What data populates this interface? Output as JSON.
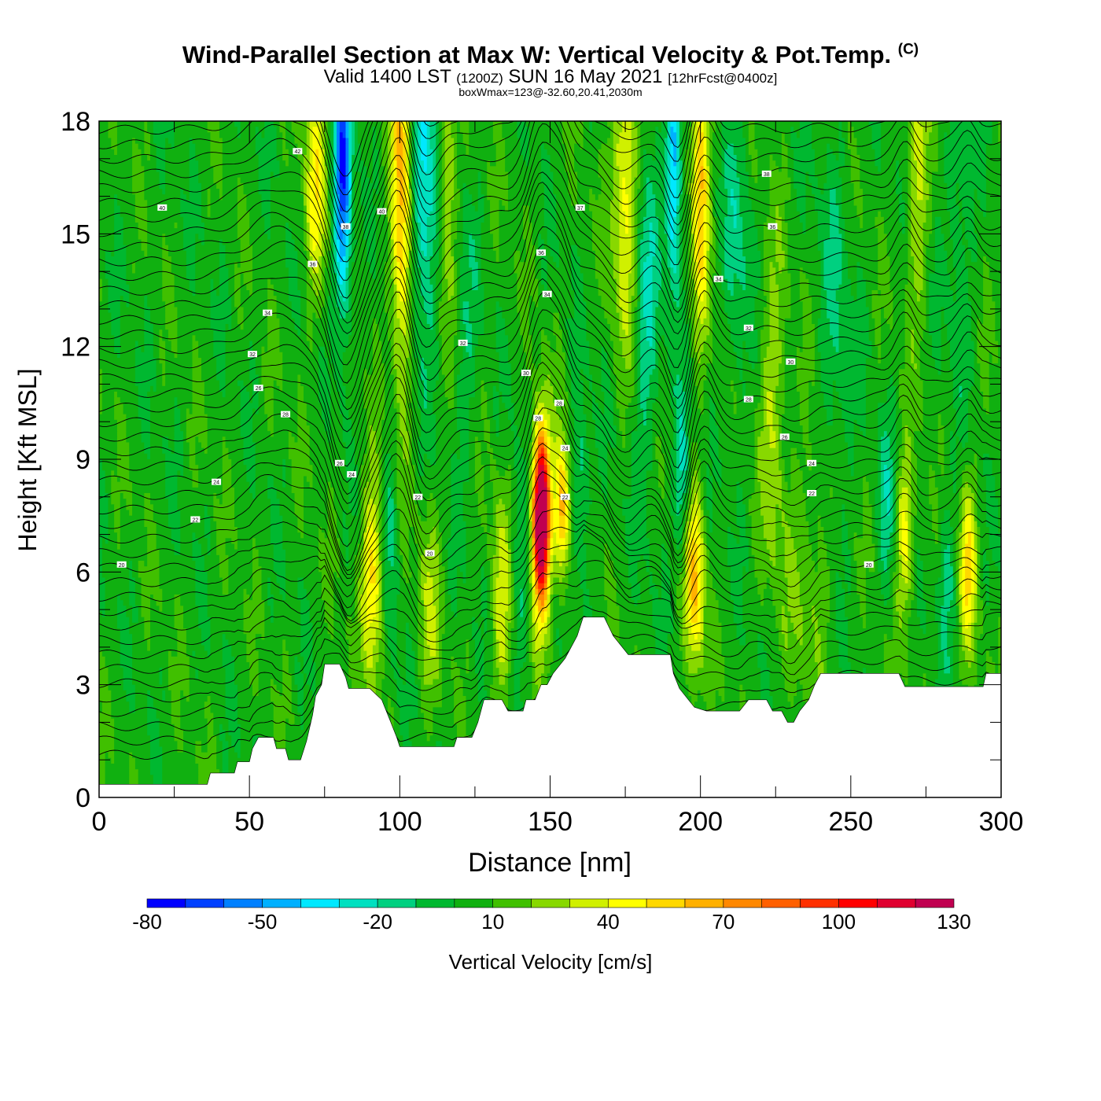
{
  "header": {
    "title_main": "Wind-Parallel Section at Max W: Vertical Velocity & Pot.Temp.",
    "title_mark": "(C)",
    "valid_prefix": "Valid 1400 LST",
    "valid_utc": "(1200Z)",
    "valid_date": "SUN 16 May 2021",
    "valid_fcst": "[12hrFcst@0400z]",
    "box_info": "boxWmax=123@-32.60,20.41,2030m"
  },
  "chart_data": {
    "type": "heatmap",
    "xlabel": "Distance [nm]",
    "ylabel": "Height [Kft MSL]",
    "xlim": [
      0,
      300
    ],
    "ylim": [
      0,
      18
    ],
    "xticks": [
      0,
      50,
      100,
      150,
      200,
      250,
      300
    ],
    "yticks": [
      0,
      3,
      6,
      9,
      12,
      15,
      18
    ],
    "colorbar": {
      "label": "Vertical Velocity [cm/s]",
      "ticks": [
        -80,
        -50,
        -20,
        10,
        40,
        70,
        100,
        130
      ],
      "levels": [
        -80,
        -70,
        -60,
        -50,
        -40,
        -30,
        -20,
        -10,
        0,
        10,
        20,
        30,
        40,
        50,
        60,
        70,
        80,
        90,
        100,
        110,
        120,
        130
      ],
      "colors": [
        "#0000ff",
        "#0040ff",
        "#0080ff",
        "#00b0ff",
        "#00e8ff",
        "#00e0c0",
        "#00d080",
        "#00b830",
        "#10b010",
        "#40c000",
        "#88d800",
        "#d0f000",
        "#ffff00",
        "#ffd800",
        "#ffb000",
        "#ff8800",
        "#ff6000",
        "#ff3000",
        "#ff0000",
        "#e00030",
        "#c00050"
      ]
    },
    "background_value": 5,
    "terrain_kft": [
      [
        0,
        0.35
      ],
      [
        36,
        0.35
      ],
      [
        37,
        0.65
      ],
      [
        45,
        0.65
      ],
      [
        46,
        0.95
      ],
      [
        50,
        0.95
      ],
      [
        51,
        1.3
      ],
      [
        53,
        1.6
      ],
      [
        58,
        1.6
      ],
      [
        59,
        1.3
      ],
      [
        62,
        1.3
      ],
      [
        63,
        1.0
      ],
      [
        67,
        1.0
      ],
      [
        69,
        1.5
      ],
      [
        71,
        2.2
      ],
      [
        72,
        2.7
      ],
      [
        74,
        3.0
      ],
      [
        75,
        3.55
      ],
      [
        80,
        3.55
      ],
      [
        82,
        3.2
      ],
      [
        83,
        2.9
      ],
      [
        90,
        2.9
      ],
      [
        94,
        2.6
      ],
      [
        97,
        2.0
      ],
      [
        99,
        1.6
      ],
      [
        100,
        1.35
      ],
      [
        118,
        1.35
      ],
      [
        119,
        1.6
      ],
      [
        124,
        1.6
      ],
      [
        126,
        2.0
      ],
      [
        128,
        2.6
      ],
      [
        134,
        2.6
      ],
      [
        136,
        2.3
      ],
      [
        141,
        2.3
      ],
      [
        142,
        2.6
      ],
      [
        145,
        2.6
      ],
      [
        147,
        3.0
      ],
      [
        149,
        3.0
      ],
      [
        151,
        3.3
      ],
      [
        155,
        3.7
      ],
      [
        159,
        4.3
      ],
      [
        161,
        4.8
      ],
      [
        168,
        4.8
      ],
      [
        171,
        4.3
      ],
      [
        176,
        3.8
      ],
      [
        182,
        3.8
      ],
      [
        190,
        3.8
      ],
      [
        191,
        3.3
      ],
      [
        193,
        2.9
      ],
      [
        196,
        2.6
      ],
      [
        198,
        2.4
      ],
      [
        202,
        2.3
      ],
      [
        213,
        2.3
      ],
      [
        216,
        2.6
      ],
      [
        222,
        2.6
      ],
      [
        224,
        2.3
      ],
      [
        227,
        2.3
      ],
      [
        229,
        2.0
      ],
      [
        231,
        2.0
      ],
      [
        233,
        2.3
      ],
      [
        236,
        2.6
      ],
      [
        238,
        3.0
      ],
      [
        240,
        3.3
      ],
      [
        266,
        3.3
      ],
      [
        268,
        2.95
      ],
      [
        294,
        2.95
      ],
      [
        295,
        3.3
      ],
      [
        300,
        3.3
      ]
    ],
    "updrafts": [
      {
        "x": 91,
        "y": 5.8,
        "sx": 2.6,
        "sy": 1.9,
        "v": 50
      },
      {
        "x": 100.5,
        "y": 16,
        "sx": 2.4,
        "sy": 3.8,
        "v": 58
      },
      {
        "x": 147,
        "y": 7.5,
        "sx": 1.9,
        "sy": 1.5,
        "v": 120
      },
      {
        "x": 147,
        "y": 7.1,
        "sx": 2.5,
        "sy": 2.0,
        "v": 45
      },
      {
        "x": 154,
        "y": 7.6,
        "sx": 1.8,
        "sy": 1.3,
        "v": 62
      },
      {
        "x": 175,
        "y": 16.5,
        "sx": 3.0,
        "sy": 3.0,
        "v": 42
      },
      {
        "x": 198,
        "y": 5.8,
        "sx": 2.3,
        "sy": 1.8,
        "v": 55
      },
      {
        "x": 200,
        "y": 16.5,
        "sx": 2.0,
        "sy": 2.7,
        "v": 58
      },
      {
        "x": 72,
        "y": 16.2,
        "sx": 2.5,
        "sy": 2.0,
        "v": 40
      },
      {
        "x": 116,
        "y": 16.5,
        "sx": 2.0,
        "sy": 2.4,
        "v": 30
      },
      {
        "x": 134,
        "y": 5.2,
        "sx": 2.5,
        "sy": 2.0,
        "v": 32
      },
      {
        "x": 224,
        "y": 10.4,
        "sx": 3.0,
        "sy": 3.0,
        "v": 25
      },
      {
        "x": 268,
        "y": 7.0,
        "sx": 2.0,
        "sy": 1.5,
        "v": 40
      },
      {
        "x": 289,
        "y": 6.2,
        "sx": 2.0,
        "sy": 1.6,
        "v": 45
      },
      {
        "x": 272,
        "y": 16.5,
        "sx": 2.4,
        "sy": 2.6,
        "v": 30
      },
      {
        "x": 110,
        "y": 5.0,
        "sx": 2.5,
        "sy": 2.0,
        "v": 22
      },
      {
        "x": 236,
        "y": 6.0,
        "sx": 6.0,
        "sy": 2.5,
        "v": 16
      }
    ],
    "downdrafts": [
      {
        "x": 81,
        "y": 16.5,
        "sx": 2.0,
        "sy": 2.5,
        "v": -75
      },
      {
        "x": 108,
        "y": 16.5,
        "sx": 3.0,
        "sy": 3.0,
        "v": -40
      },
      {
        "x": 191,
        "y": 16.8,
        "sx": 1.8,
        "sy": 2.2,
        "v": -55
      },
      {
        "x": 182,
        "y": 13.0,
        "sx": 3.0,
        "sy": 3.0,
        "v": -25
      },
      {
        "x": 160,
        "y": 8.2,
        "sx": 2.2,
        "sy": 1.6,
        "v": -25
      },
      {
        "x": 194,
        "y": 8.5,
        "sx": 2.0,
        "sy": 1.6,
        "v": -30
      },
      {
        "x": 97,
        "y": 7.0,
        "sx": 2.0,
        "sy": 2.0,
        "v": -22
      },
      {
        "x": 140,
        "y": 6.0,
        "sx": 3.0,
        "sy": 2.0,
        "v": -18
      },
      {
        "x": 245,
        "y": 12.0,
        "sx": 4.0,
        "sy": 4.0,
        "v": -14
      },
      {
        "x": 122,
        "y": 12.0,
        "sx": 3.0,
        "sy": 2.5,
        "v": -12
      },
      {
        "x": 212,
        "y": 15.0,
        "sx": 3.0,
        "sy": 3.0,
        "v": -18
      },
      {
        "x": 262,
        "y": 7.5,
        "sx": 2.0,
        "sy": 1.6,
        "v": -20
      },
      {
        "x": 282,
        "y": 6.0,
        "sx": 2.0,
        "sy": 1.6,
        "v": -18
      },
      {
        "x": 286,
        "y": 15.5,
        "sx": 3.0,
        "sy": 3.0,
        "v": -16
      }
    ],
    "contour_labels": [
      {
        "x": 7.5,
        "y": 6.2,
        "text": "20"
      },
      {
        "x": 32,
        "y": 7.4,
        "text": "22"
      },
      {
        "x": 39,
        "y": 8.4,
        "text": "24"
      },
      {
        "x": 53,
        "y": 10.9,
        "text": "26"
      },
      {
        "x": 62,
        "y": 10.2,
        "text": "28"
      },
      {
        "x": 51,
        "y": 11.8,
        "text": "32"
      },
      {
        "x": 56,
        "y": 12.9,
        "text": "34"
      },
      {
        "x": 71,
        "y": 14.2,
        "text": "36"
      },
      {
        "x": 66,
        "y": 17.2,
        "text": "42"
      },
      {
        "x": 21,
        "y": 15.7,
        "text": "40"
      },
      {
        "x": 82,
        "y": 15.2,
        "text": "38"
      },
      {
        "x": 94,
        "y": 15.6,
        "text": "40"
      },
      {
        "x": 80,
        "y": 8.9,
        "text": "26"
      },
      {
        "x": 84,
        "y": 8.6,
        "text": "24"
      },
      {
        "x": 106,
        "y": 8.0,
        "text": "22"
      },
      {
        "x": 110,
        "y": 6.5,
        "text": "20"
      },
      {
        "x": 121,
        "y": 12.1,
        "text": "32"
      },
      {
        "x": 142,
        "y": 11.3,
        "text": "30"
      },
      {
        "x": 146,
        "y": 10.1,
        "text": "28"
      },
      {
        "x": 153,
        "y": 10.5,
        "text": "28"
      },
      {
        "x": 155,
        "y": 9.3,
        "text": "24"
      },
      {
        "x": 155,
        "y": 8.0,
        "text": "22"
      },
      {
        "x": 147,
        "y": 14.5,
        "text": "36"
      },
      {
        "x": 149,
        "y": 13.4,
        "text": "34"
      },
      {
        "x": 160,
        "y": 15.7,
        "text": "37"
      },
      {
        "x": 206,
        "y": 13.8,
        "text": "34"
      },
      {
        "x": 216,
        "y": 12.5,
        "text": "32"
      },
      {
        "x": 222,
        "y": 16.6,
        "text": "38"
      },
      {
        "x": 224,
        "y": 15.2,
        "text": "36"
      },
      {
        "x": 230,
        "y": 11.6,
        "text": "30"
      },
      {
        "x": 216,
        "y": 10.6,
        "text": "28"
      },
      {
        "x": 228,
        "y": 9.6,
        "text": "26"
      },
      {
        "x": 237,
        "y": 8.9,
        "text": "24"
      },
      {
        "x": 237,
        "y": 8.1,
        "text": "22"
      },
      {
        "x": 256,
        "y": 6.2,
        "text": "20"
      }
    ]
  }
}
